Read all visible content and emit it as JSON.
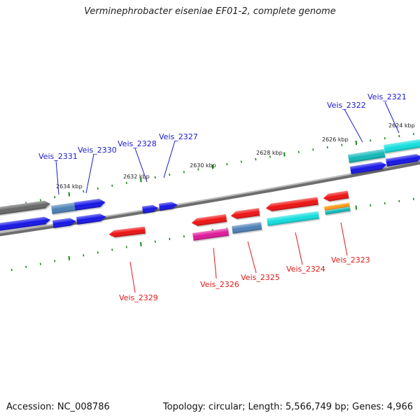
{
  "title": "Verminephrobacter eiseniae EF01-2, complete genome",
  "footer": {
    "accession": "Accession: NC_008786",
    "summary": "Topology: circular; Length: 5,566,749 bp; Genes: 4,966"
  },
  "colors": {
    "backbone": "#7a7a7a",
    "forward_label": "#1a1ad0",
    "reverse_label": "#e01818",
    "tick": "#1a8a1a",
    "red": "#ee1111",
    "blue": "#1414e6",
    "cyan": "#12dede",
    "teal": "#12b8b8",
    "steel": "#4a7fb5",
    "magenta": "#e0189a",
    "orange": "#ff9a14",
    "gray": "#666666"
  },
  "kbp_labels": [
    "2624 kbp",
    "2626 kbp",
    "2628 kbp",
    "2630 kbp",
    "2632 kbp",
    "2634 kbp"
  ],
  "genes": [
    {
      "name": "Veis_2321",
      "strand": "forward"
    },
    {
      "name": "Veis_2322",
      "strand": "forward"
    },
    {
      "name": "Veis_2327",
      "strand": "forward"
    },
    {
      "name": "Veis_2328",
      "strand": "forward"
    },
    {
      "name": "Veis_2330",
      "strand": "forward"
    },
    {
      "name": "Veis_2331",
      "strand": "forward"
    },
    {
      "name": "Veis_2323",
      "strand": "reverse"
    },
    {
      "name": "Veis_2324",
      "strand": "reverse"
    },
    {
      "name": "Veis_2325",
      "strand": "reverse"
    },
    {
      "name": "Veis_2326",
      "strand": "reverse"
    },
    {
      "name": "Veis_2329",
      "strand": "reverse"
    }
  ]
}
